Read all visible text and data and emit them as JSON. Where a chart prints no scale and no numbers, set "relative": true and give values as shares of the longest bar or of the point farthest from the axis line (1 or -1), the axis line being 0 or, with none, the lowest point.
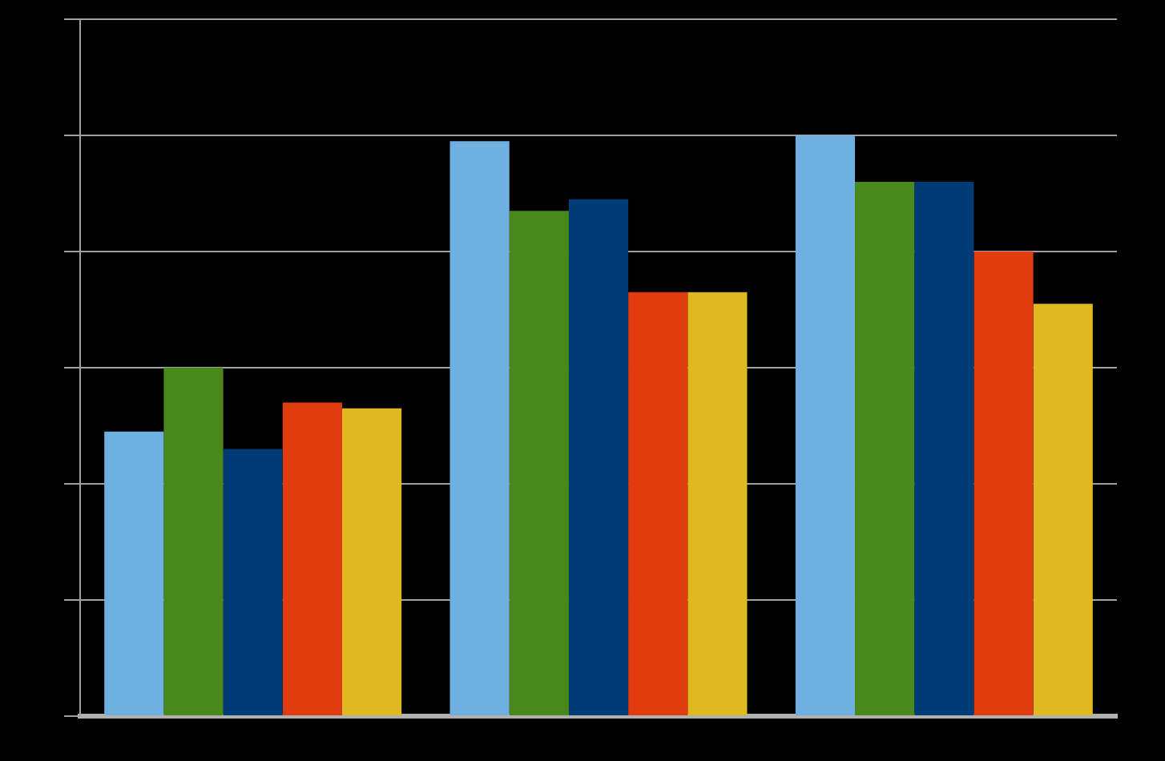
{
  "chart_data": {
    "type": "bar",
    "relative": true,
    "grid": "y",
    "categories": [
      null,
      null,
      null
    ],
    "series": [
      {
        "color": "#70b0e0",
        "values": [
          0.49,
          0.99,
          1
        ]
      },
      {
        "color": "#4a881c",
        "values": [
          0.6,
          0.87,
          0.92
        ]
      },
      {
        "color": "#003c78",
        "values": [
          0.46,
          0.89,
          0.92
        ]
      },
      {
        "color": "#e03c10",
        "values": [
          0.54,
          0.73,
          0.8
        ]
      },
      {
        "color": "#e0b820",
        "values": [
          0.53,
          0.73,
          0.71
        ]
      }
    ]
  }
}
